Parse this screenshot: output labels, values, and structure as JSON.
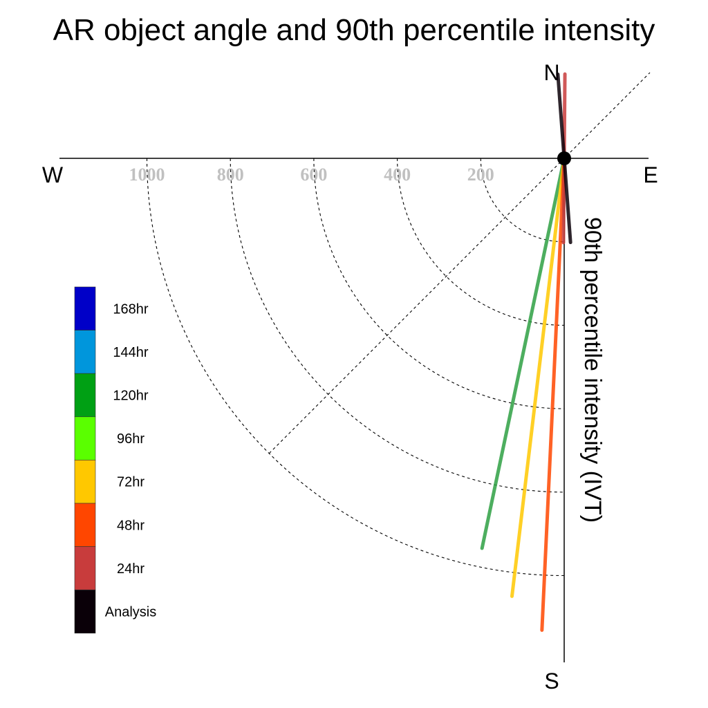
{
  "chart_data": {
    "type": "polar-vector",
    "title": "AR object angle and 90th percentile intensity",
    "ylabel": "90th percentile intensity (IVT)",
    "compass": {
      "north": "N",
      "south": "S",
      "east": "E",
      "west": "W"
    },
    "rings": [
      200,
      400,
      600,
      800,
      1000
    ],
    "tick_labels": [
      "1000",
      "800",
      "600",
      "400",
      "200"
    ],
    "rmax": 1200,
    "legend": [
      {
        "label": "168hr",
        "color": "#0000c8"
      },
      {
        "label": "144hr",
        "color": "#0096dc"
      },
      {
        "label": "120hr",
        "color": "#00a014"
      },
      {
        "label": "96hr",
        "color": "#5aff00"
      },
      {
        "label": "72hr",
        "color": "#ffc800"
      },
      {
        "label": "48hr",
        "color": "#ff4600"
      },
      {
        "label": "24hr",
        "color": "#c83c3c"
      },
      {
        "label": "Analysis",
        "color": "#0a0008"
      }
    ],
    "series": [
      {
        "name": "120hr",
        "color": "#2ea043",
        "angle_deg": 191.9,
        "intensity": 955,
        "bidirectional": false
      },
      {
        "name": "72hr",
        "color": "#ffc800",
        "angle_deg": 186.8,
        "intensity": 1057,
        "bidirectional": false
      },
      {
        "name": "48hr",
        "color": "#ff4600",
        "angle_deg": 182.7,
        "intensity": 1132,
        "bidirectional": false
      },
      {
        "name": "24hr",
        "color": "#c83c3c",
        "angle_deg": 180.5,
        "intensity": 202,
        "bidirectional": true
      },
      {
        "name": "Analysis",
        "color": "#0a0008",
        "angle_deg": 175.7,
        "intensity": 202,
        "bidirectional": true
      }
    ]
  }
}
